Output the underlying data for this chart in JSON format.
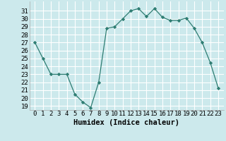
{
  "x": [
    0,
    1,
    2,
    3,
    4,
    5,
    6,
    7,
    8,
    9,
    10,
    11,
    12,
    13,
    14,
    15,
    16,
    17,
    18,
    19,
    20,
    21,
    22,
    23
  ],
  "y": [
    27,
    25,
    23,
    23,
    23,
    20.5,
    19.5,
    18.8,
    22,
    28.8,
    29,
    30,
    31,
    31.3,
    30.3,
    31.3,
    30.2,
    29.8,
    29.8,
    30.1,
    28.8,
    27,
    24.5,
    21.3
  ],
  "line_color": "#2e7d72",
  "marker": "D",
  "marker_size": 2.2,
  "bg_color": "#cce9ec",
  "grid_color": "#ffffff",
  "xlabel": "Humidex (Indice chaleur)",
  "ylim": [
    18.5,
    32.2
  ],
  "yticks": [
    19,
    20,
    21,
    22,
    23,
    24,
    25,
    26,
    27,
    28,
    29,
    30,
    31
  ],
  "xticks": [
    0,
    1,
    2,
    3,
    4,
    5,
    6,
    7,
    8,
    9,
    10,
    11,
    12,
    13,
    14,
    15,
    16,
    17,
    18,
    19,
    20,
    21,
    22,
    23
  ],
  "xlabel_fontsize": 7.5,
  "tick_fontsize": 6.5
}
